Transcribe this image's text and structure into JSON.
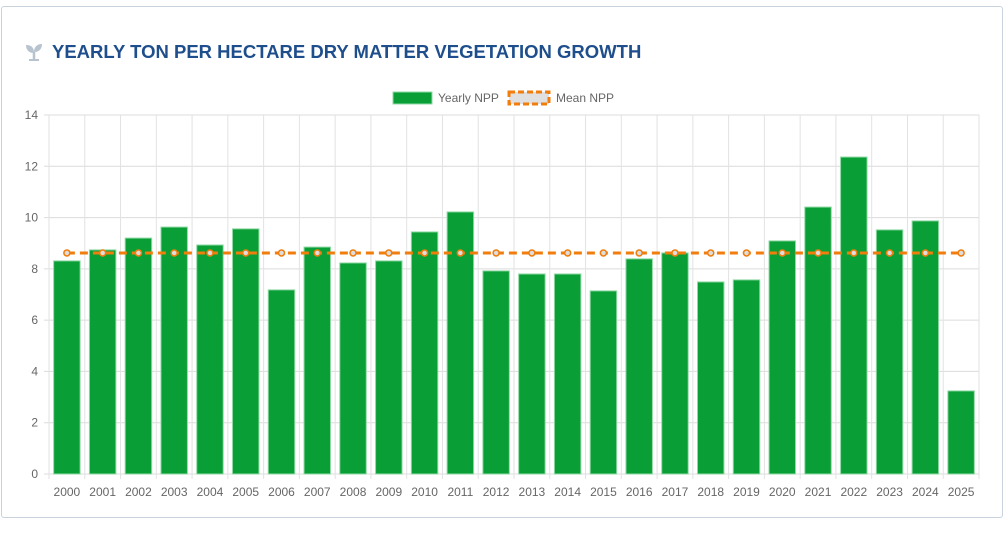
{
  "card": {
    "title": "YEARLY TON PER HECTARE DRY MATTER VEGETATION GROWTH",
    "icon": "seedling-icon"
  },
  "chart_data": {
    "type": "bar",
    "title": "",
    "xlabel": "",
    "ylabel": "",
    "ylim": [
      0,
      14
    ],
    "yticks": [
      0,
      2,
      4,
      6,
      8,
      10,
      12,
      14
    ],
    "grid": true,
    "legend_position": "top",
    "categories": [
      "2000",
      "2001",
      "2002",
      "2003",
      "2004",
      "2005",
      "2006",
      "2007",
      "2008",
      "2009",
      "2010",
      "2011",
      "2012",
      "2013",
      "2014",
      "2015",
      "2016",
      "2017",
      "2018",
      "2019",
      "2020",
      "2021",
      "2022",
      "2023",
      "2024",
      "2025"
    ],
    "series": [
      {
        "name": "Yearly NPP",
        "type": "bar",
        "color": "#0a9e36",
        "values": [
          8.31,
          8.74,
          9.2,
          9.63,
          8.93,
          9.56,
          7.18,
          8.85,
          8.23,
          8.31,
          9.44,
          10.22,
          7.92,
          7.8,
          7.8,
          7.14,
          8.39,
          8.62,
          7.49,
          7.57,
          9.09,
          10.41,
          12.36,
          9.52,
          9.87,
          3.24
        ]
      },
      {
        "name": "Mean NPP",
        "type": "line",
        "style": "dashed",
        "color": "#f07d0c",
        "values": [
          8.62,
          8.62,
          8.62,
          8.62,
          8.62,
          8.62,
          8.62,
          8.62,
          8.62,
          8.62,
          8.62,
          8.62,
          8.62,
          8.62,
          8.62,
          8.62,
          8.62,
          8.62,
          8.62,
          8.62,
          8.62,
          8.62,
          8.62,
          8.62,
          8.62,
          8.62
        ]
      }
    ]
  }
}
